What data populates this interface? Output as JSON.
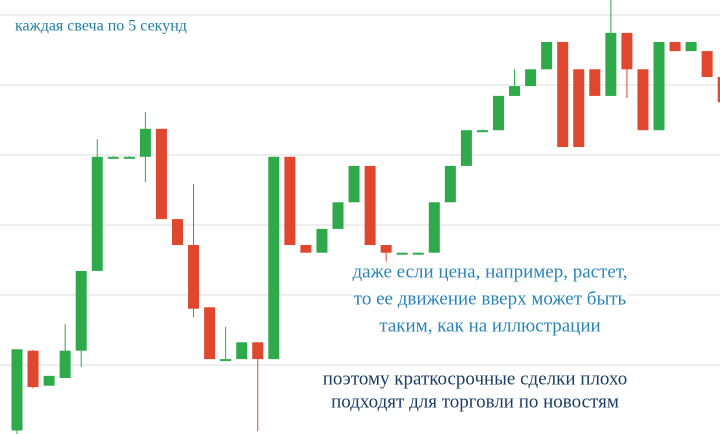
{
  "chart_data": {
    "type": "candlestick",
    "open": [
      0.5,
      11.9,
      6.9,
      8,
      11.9,
      23.3,
      39.6,
      39.6,
      39.6,
      43.6,
      30.7,
      27,
      18.1,
      10.7,
      10.7,
      13.1,
      10.7,
      39.6,
      27,
      25.9,
      29.3,
      33.1,
      38.3,
      27,
      25.9,
      25.9,
      25.9,
      33.1,
      38.3,
      43.4,
      43.4,
      48.3,
      49.7,
      52.1,
      56,
      52.1,
      52.1,
      48.3,
      57.3,
      52.1,
      43.4,
      56,
      54.7,
      54.7,
      51
    ],
    "high": [
      12.1,
      12,
      8.3,
      15.7,
      23.3,
      42.1,
      39.7,
      39.7,
      46,
      43.6,
      30.7,
      35.7,
      18.1,
      15.3,
      13.1,
      13.1,
      39.6,
      39.6,
      27,
      29.3,
      33.1,
      38.3,
      38.3,
      27,
      25.9,
      25.9,
      33.1,
      38.3,
      43.4,
      43.5,
      48.3,
      52.1,
      52.1,
      56,
      56,
      52.1,
      52.1,
      62,
      57.3,
      52.1,
      56,
      56,
      56,
      54.7,
      51
    ],
    "low": [
      0,
      6.5,
      6.9,
      8,
      9.6,
      23.3,
      39.5,
      39.5,
      36,
      30.7,
      27,
      16.7,
      10.7,
      10.7,
      10.7,
      0.4,
      10.7,
      27,
      25.9,
      25.9,
      29.3,
      33.1,
      27,
      23.9,
      25.8,
      25.8,
      25.9,
      33.1,
      38.3,
      43.3,
      43.4,
      48.3,
      49.7,
      52.1,
      41,
      41,
      48.3,
      48.3,
      48,
      43.4,
      43.4,
      54.7,
      54.7,
      51,
      47.4
    ],
    "close": [
      12.1,
      6.7,
      8.3,
      11.9,
      23.3,
      39.6,
      39.6,
      39.6,
      43.6,
      30.7,
      27,
      17.9,
      10.7,
      10.7,
      13.1,
      10.7,
      39.6,
      27,
      25.9,
      29.3,
      33.1,
      38.3,
      27,
      25.9,
      25.9,
      25.9,
      33.1,
      38.3,
      43.4,
      43.4,
      48.3,
      49.7,
      52.1,
      56,
      41,
      41,
      48.3,
      57.3,
      52.1,
      43.4,
      56,
      54.7,
      56,
      51,
      47.4
    ],
    "up_color": "#2eaa4a",
    "down_color": "#e0472f",
    "ylim": [
      0,
      62
    ],
    "yticks": [
      0,
      10,
      20,
      30,
      40,
      50,
      60
    ],
    "grid": true,
    "annotations": [
      [
        "каждая свеча по 5 секунд"
      ],
      [
        "даже если цена, например, растет,",
        "то ее движение вверх может быть",
        "таким, как на иллюстрации"
      ],
      [
        "поэтому краткосрочные сделки плохо",
        "подходят для торговли по новостям"
      ]
    ]
  }
}
